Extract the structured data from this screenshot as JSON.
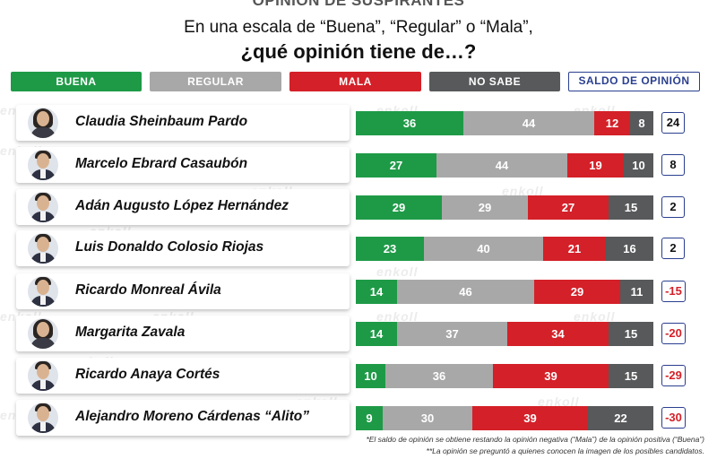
{
  "header": {
    "title": "OPINIÓN DE SUSPIRANTES",
    "subtitle": "En una escala de “Buena”, “Regular” o “Mala”,",
    "question": "¿qué opinión tiene de…?"
  },
  "legend": {
    "buena": "BUENA",
    "regular": "REGULAR",
    "mala": "MALA",
    "no_sabe": "NO SABE",
    "saldo": "SALDO DE OPINIÓN"
  },
  "watermark_text": "enkoll",
  "colors": {
    "buena": "#1e9a47",
    "regular": "#a8a8a8",
    "mala": "#d42028",
    "no_sabe": "#58595b",
    "saldo_border": "#2a3f8f"
  },
  "chart_data": {
    "type": "bar",
    "stacked": true,
    "orientation": "horizontal",
    "categories": [
      "Claudia Sheinbaum Pardo",
      "Marcelo Ebrard Casaubón",
      "Adán Augusto López Hernández",
      "Luis Donaldo Colosio Riojas",
      "Ricardo Monreal Ávila",
      "Margarita Zavala",
      "Ricardo Anaya Cortés",
      "Alejandro Moreno Cárdenas “Alito”"
    ],
    "series": [
      {
        "name": "BUENA",
        "values": [
          36,
          27,
          29,
          23,
          14,
          14,
          10,
          9
        ]
      },
      {
        "name": "REGULAR",
        "values": [
          44,
          44,
          29,
          40,
          46,
          37,
          36,
          30
        ]
      },
      {
        "name": "MALA",
        "values": [
          12,
          19,
          27,
          21,
          29,
          34,
          39,
          39
        ]
      },
      {
        "name": "NO SABE",
        "values": [
          8,
          10,
          15,
          16,
          11,
          15,
          15,
          22
        ]
      }
    ],
    "saldo": [
      "24",
      "8",
      "2",
      "2",
      "-15",
      "-20",
      "-29",
      "-30"
    ],
    "avatar_gender": [
      "female",
      "male",
      "male",
      "male",
      "male",
      "female",
      "male",
      "male"
    ]
  },
  "footnotes": [
    "*El saldo de opinión se obtiene restando la opinión negativa (“Mala”) de la opinión positiva (“Buena”)",
    "**La opinión se preguntó a quienes conocen la imagen de los posibles candidatos."
  ]
}
